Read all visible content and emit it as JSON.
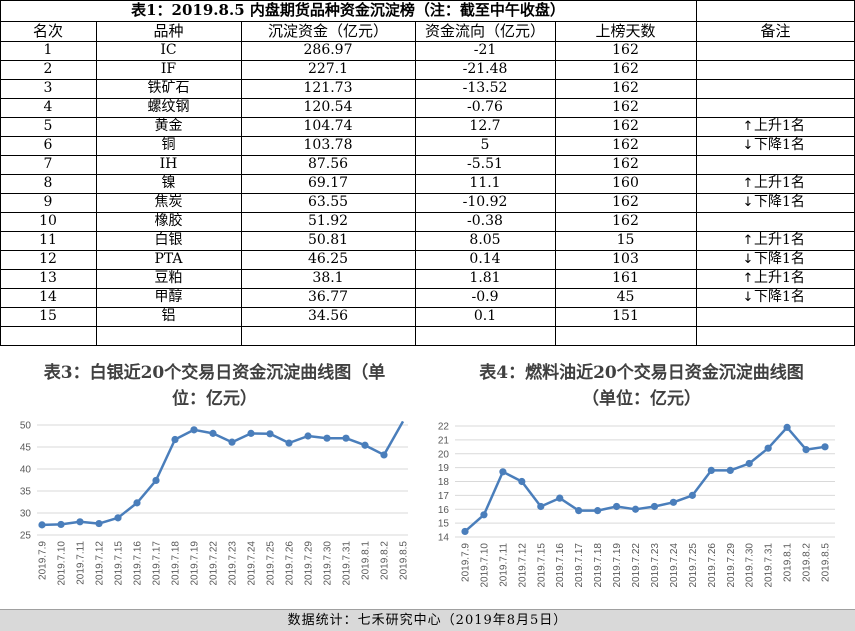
{
  "table": {
    "title": "表1：2019.8.5 内盘期货品种资金沉淀榜（注：截至中午收盘）",
    "headers": [
      "名次",
      "品种",
      "沉淀资金（亿元）",
      "资金流向（亿元）",
      "上榜天数",
      "备注"
    ],
    "rows": [
      {
        "rank": "1",
        "name": "IC",
        "capital": "286.97",
        "flow": "-21",
        "days": "162",
        "note_arrow": "",
        "note": ""
      },
      {
        "rank": "2",
        "name": "IF",
        "capital": "227.1",
        "flow": "-21.48",
        "days": "162",
        "note_arrow": "",
        "note": ""
      },
      {
        "rank": "3",
        "name": "铁矿石",
        "capital": "121.73",
        "flow": "-13.52",
        "days": "162",
        "note_arrow": "",
        "note": ""
      },
      {
        "rank": "4",
        "name": "螺纹钢",
        "capital": "120.54",
        "flow": "-0.76",
        "days": "162",
        "note_arrow": "",
        "note": ""
      },
      {
        "rank": "5",
        "name": "黄金",
        "capital": "104.74",
        "flow": "12.7",
        "days": "162",
        "note_arrow": "↑",
        "note": "上升1名"
      },
      {
        "rank": "6",
        "name": "铜",
        "capital": "103.78",
        "flow": "5",
        "days": "162",
        "note_arrow": "↓",
        "note": "下降1名"
      },
      {
        "rank": "7",
        "name": "IH",
        "capital": "87.56",
        "flow": "-5.51",
        "days": "162",
        "note_arrow": "",
        "note": ""
      },
      {
        "rank": "8",
        "name": "镍",
        "capital": "69.17",
        "flow": "11.1",
        "days": "160",
        "note_arrow": "↑",
        "note": "上升1名"
      },
      {
        "rank": "9",
        "name": "焦炭",
        "capital": "63.55",
        "flow": "-10.92",
        "days": "162",
        "note_arrow": "↓",
        "note": "下降1名"
      },
      {
        "rank": "10",
        "name": "橡胶",
        "capital": "51.92",
        "flow": "-0.38",
        "days": "162",
        "note_arrow": "",
        "note": ""
      },
      {
        "rank": "11",
        "name": "白银",
        "capital": "50.81",
        "flow": "8.05",
        "days": "15",
        "note_arrow": "↑",
        "note": "上升1名"
      },
      {
        "rank": "12",
        "name": "PTA",
        "capital": "46.25",
        "flow": "0.14",
        "days": "103",
        "note_arrow": "↓",
        "note": "下降1名"
      },
      {
        "rank": "13",
        "name": "豆粕",
        "capital": "38.1",
        "flow": "1.81",
        "days": "161",
        "note_arrow": "↑",
        "note": "上升1名"
      },
      {
        "rank": "14",
        "name": "甲醇",
        "capital": "36.77",
        "flow": "-0.9",
        "days": "45",
        "note_arrow": "↓",
        "note": "下降1名"
      },
      {
        "rank": "15",
        "name": "铝",
        "capital": "34.56",
        "flow": "0.1",
        "days": "151",
        "note_arrow": "",
        "note": ""
      }
    ]
  },
  "footer": "数据统计：七禾研究中心（2019年8月5日）",
  "colors": {
    "line": "#4a7ebb",
    "grid": "#d9d9d9",
    "axis_text": "#595959"
  },
  "chart_data": [
    {
      "type": "line",
      "title_lines": [
        "表3：白银近20个交易日资金沉淀曲线图（单",
        "位：亿元）"
      ],
      "x": [
        "2019.7.9",
        "2019.7.10",
        "2019.7.11",
        "2019.7.12",
        "2019.7.15",
        "2019.7.16",
        "2019.7.17",
        "2019.7.18",
        "2019.7.19",
        "2019.7.22",
        "2019.7.23",
        "2019.7.24",
        "2019.7.25",
        "2019.7.26",
        "2019.7.29",
        "2019.7.30",
        "2019.7.31",
        "2019.8.1",
        "2019.8.2",
        "2019.8.5"
      ],
      "values": [
        27.3,
        27.4,
        28.0,
        27.6,
        28.9,
        32.3,
        37.4,
        46.7,
        48.9,
        48.1,
        46.1,
        48.1,
        48.0,
        45.9,
        47.5,
        47.0,
        47.0,
        45.4,
        43.2,
        50.81
      ],
      "yticks": [
        25,
        30,
        35,
        40,
        45,
        50
      ],
      "ylim": [
        25,
        50
      ],
      "grid": true
    },
    {
      "type": "line",
      "title_lines": [
        "表4：燃料油近20个交易日资金沉淀曲线图",
        "（单位：亿元）"
      ],
      "x": [
        "2019.7.9",
        "2019.7.10",
        "2019.7.11",
        "2019.7.12",
        "2019.7.15",
        "2019.7.16",
        "2019.7.17",
        "2019.7.18",
        "2019.7.19",
        "2019.7.22",
        "2019.7.23",
        "2019.7.24",
        "2019.7.25",
        "2019.7.26",
        "2019.7.29",
        "2019.7.30",
        "2019.7.31",
        "2019.8.1",
        "2019.8.2",
        "2019.8.5"
      ],
      "values": [
        14.4,
        15.6,
        18.7,
        18.0,
        16.2,
        16.8,
        15.9,
        15.9,
        16.2,
        16.0,
        16.2,
        16.5,
        17.0,
        18.8,
        18.8,
        19.3,
        20.4,
        21.9,
        20.3,
        20.5
      ],
      "yticks": [
        14,
        15,
        16,
        17,
        18,
        19,
        20,
        21,
        22
      ],
      "ylim": [
        14,
        22
      ],
      "grid": true
    }
  ]
}
